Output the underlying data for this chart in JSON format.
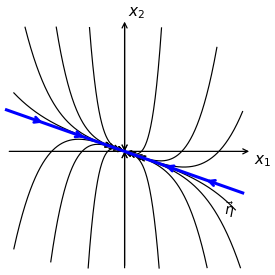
{
  "title": "",
  "xlabel": "$x_1$",
  "ylabel": "$x_2$",
  "eta_label": "$\\vec{\\eta}$",
  "eta_slope": -0.333,
  "xlim": [
    -3.2,
    3.2
  ],
  "ylim": [
    -3.0,
    3.2
  ],
  "axis_color": "black",
  "line_color": "blue",
  "traj_color": "black",
  "background": "white",
  "lam1": -1,
  "lam2": -4,
  "v1": [
    1,
    -0.333
  ],
  "v2": [
    0,
    1
  ]
}
